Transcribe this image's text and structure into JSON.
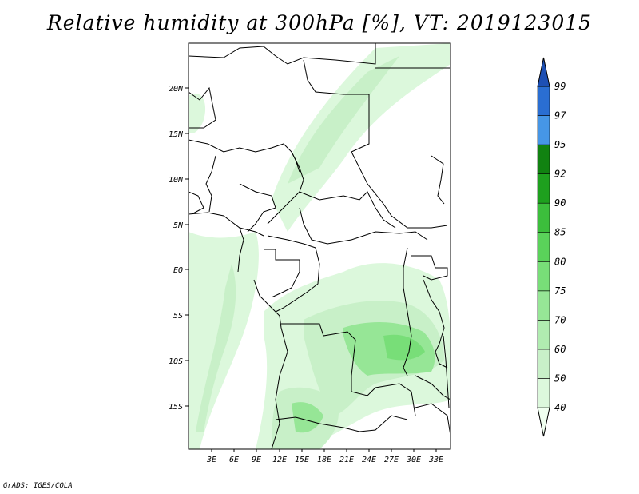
{
  "title": "Relative humidity at 300hPa [%], VT: 2019123015",
  "footer": "GrADS: IGES/COLA",
  "map": {
    "lon_labels": [
      "3E",
      "6E",
      "9E",
      "12E",
      "15E",
      "18E",
      "21E",
      "24E",
      "27E",
      "30E",
      "33E"
    ],
    "lat_labels": [
      "20N",
      "15N",
      "10N",
      "5N",
      "EQ",
      "5S",
      "10S",
      "15S"
    ]
  },
  "colorbar": {
    "labels": [
      "40",
      "50",
      "60",
      "70",
      "75",
      "80",
      "85",
      "90",
      "92",
      "95",
      "97",
      "99"
    ],
    "colors": [
      "#f0fff0",
      "#dcf8dc",
      "#c8f0c8",
      "#b0ecb0",
      "#96e696",
      "#78de78",
      "#5ad25a",
      "#3cbe3c",
      "#1ea01e",
      "#118211",
      "#4696e6",
      "#2a6ed2",
      "#1e50b4"
    ]
  },
  "chart_data": {
    "type": "heatmap",
    "title": "Relative humidity at 300hPa [%], VT: 2019123015",
    "variable": "Relative humidity",
    "level": "300hPa",
    "units": "%",
    "valid_time": "2019123015",
    "lon_range": [
      0,
      34
    ],
    "lat_range": [
      -20,
      24
    ],
    "contour_levels": [
      40,
      50,
      60,
      70,
      75,
      80,
      85,
      90,
      92,
      95,
      97,
      99
    ]
  }
}
